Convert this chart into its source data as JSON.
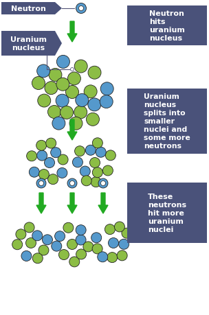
{
  "bg_color": "#ffffff",
  "dark_blue": "#3d4d78",
  "green_nucleon": "#8cbd45",
  "blue_nucleon": "#5599cc",
  "arrow_color": "#22aa22",
  "label_bg": "#4a527a",
  "label_text": "#ffffff",
  "labels": {
    "neutron": "Neutron",
    "uranium": "Uranium\nnucleus",
    "step1": "Neutron\nhits\nuranium\nnucleus",
    "step2": "Uranium\nnucleus\nsplits into\nsmaller\nnuclei and\nsome more\nneutrons",
    "step3": "These\nneutrons\nhit more\nuranium\nnuclei"
  },
  "figsize": [
    3.04,
    4.6
  ],
  "dpi": 100
}
